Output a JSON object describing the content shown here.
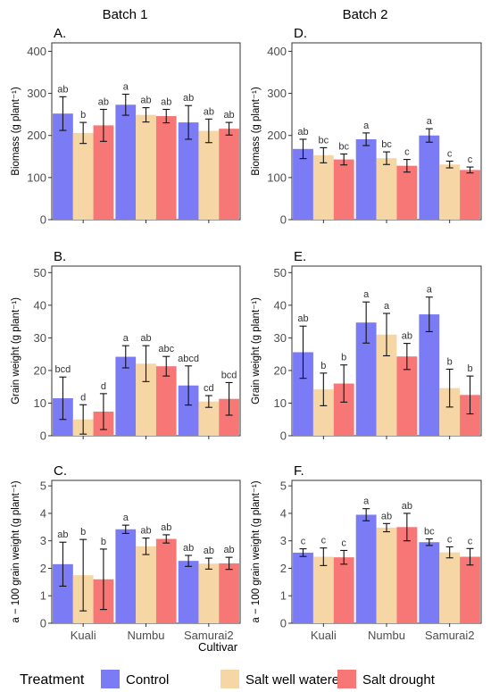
{
  "figure": {
    "col_titles": [
      "Batch 1",
      "Batch 2"
    ],
    "x_title": "Cultivar",
    "legend_title": "Treatment"
  },
  "colors": [
    "#7b7bf5",
    "#f6d6a4",
    "#f77777"
  ],
  "chart_data": [
    {
      "type": "bar",
      "panel": "A.",
      "column": "Batch 1",
      "ylabel": "Biomass (g plant⁻¹)",
      "ylim": [
        0,
        420
      ],
      "yticks": [
        "0",
        "100",
        "200",
        "300",
        "400"
      ],
      "ytick_values": [
        0,
        100,
        200,
        300,
        400
      ],
      "categories": [
        "Kuali",
        "Numbu",
        "Samurai2"
      ],
      "show_xticks": false,
      "grid": false,
      "series": [
        {
          "name": "Control",
          "values": [
            252,
            273,
            231
          ],
          "errors": [
            40,
            25,
            40
          ],
          "letters": [
            "ab",
            "a",
            "ab"
          ]
        },
        {
          "name": "Salt well watered",
          "values": [
            206,
            249,
            211
          ],
          "errors": [
            25,
            17,
            28
          ],
          "letters": [
            "b",
            "ab",
            "ab"
          ]
        },
        {
          "name": "Salt drought",
          "values": [
            224,
            246,
            216
          ],
          "errors": [
            38,
            16,
            15
          ],
          "letters": [
            "ab",
            "ab",
            "ab"
          ]
        }
      ]
    },
    {
      "type": "bar",
      "panel": "D.",
      "column": "Batch 2",
      "ylabel": "Biomass (g plant⁻¹)",
      "ylim": [
        0,
        420
      ],
      "yticks": [
        "0",
        "100",
        "200",
        "300",
        "400"
      ],
      "ytick_values": [
        0,
        100,
        200,
        300,
        400
      ],
      "categories": [
        "Kuali",
        "Numbu",
        "Samurai2"
      ],
      "show_xticks": false,
      "grid": false,
      "series": [
        {
          "name": "Control",
          "values": [
            168,
            191,
            200
          ],
          "errors": [
            23,
            15,
            16
          ],
          "letters": [
            "ab",
            "a",
            "a"
          ]
        },
        {
          "name": "Salt well watered",
          "values": [
            153,
            146,
            131
          ],
          "errors": [
            18,
            15,
            8
          ],
          "letters": [
            "bc",
            "bc",
            "c"
          ]
        },
        {
          "name": "Salt drought",
          "values": [
            143,
            128,
            118
          ],
          "errors": [
            13,
            15,
            7
          ],
          "letters": [
            "bc",
            "c",
            "c"
          ]
        }
      ]
    },
    {
      "type": "bar",
      "panel": "B.",
      "column": "Batch 1",
      "ylabel": "Grain weight (g plant⁻¹)",
      "ylim": [
        0,
        52
      ],
      "yticks": [
        "0",
        "10",
        "20",
        "30",
        "40",
        "50"
      ],
      "ytick_values": [
        0,
        10,
        20,
        30,
        40,
        50
      ],
      "categories": [
        "Kuali",
        "Numbu",
        "Samurai2"
      ],
      "show_xticks": false,
      "grid": false,
      "series": [
        {
          "name": "Control",
          "values": [
            11.5,
            24.2,
            15.4
          ],
          "errors": [
            6.5,
            3.4,
            6
          ],
          "letters": [
            "bcd",
            "a",
            "abcd"
          ]
        },
        {
          "name": "Salt well watered",
          "values": [
            5.0,
            22.1,
            10.5
          ],
          "errors": [
            4.5,
            5.5,
            1.8
          ],
          "letters": [
            "d",
            "ab",
            "cd"
          ]
        },
        {
          "name": "Salt drought",
          "values": [
            7.4,
            21.3,
            11.3
          ],
          "errors": [
            5.5,
            3,
            5
          ],
          "letters": [
            "d",
            "abc",
            "bcd"
          ]
        }
      ]
    },
    {
      "type": "bar",
      "panel": "E.",
      "column": "Batch 2",
      "ylabel": "Grain weight (g plant⁻¹)",
      "ylim": [
        0,
        52
      ],
      "yticks": [
        "0",
        "10",
        "20",
        "30",
        "40",
        "50"
      ],
      "ytick_values": [
        0,
        10,
        20,
        30,
        40,
        50
      ],
      "categories": [
        "Kuali",
        "Numbu",
        "Samurai2"
      ],
      "show_xticks": false,
      "grid": false,
      "series": [
        {
          "name": "Control",
          "values": [
            25.6,
            34.7,
            37.2
          ],
          "errors": [
            8,
            6.3,
            5.3
          ],
          "letters": [
            "ab",
            "a",
            "a"
          ]
        },
        {
          "name": "Salt well watered",
          "values": [
            14.2,
            31.0,
            14.6
          ],
          "errors": [
            5,
            6.5,
            5.8
          ],
          "letters": [
            "b",
            "a",
            "b"
          ]
        },
        {
          "name": "Salt drought",
          "values": [
            16.0,
            24.3,
            12.5
          ],
          "errors": [
            5.7,
            4,
            5.8
          ],
          "letters": [
            "b",
            "ab",
            "b"
          ]
        }
      ]
    },
    {
      "type": "bar",
      "panel": "C.",
      "column": "Batch 1",
      "ylabel": "a − 100 grain weight (g plant⁻¹)",
      "ylim": [
        0,
        5.2
      ],
      "yticks": [
        "0",
        "1",
        "2",
        "3",
        "4",
        "5"
      ],
      "ytick_values": [
        0,
        1,
        2,
        3,
        4,
        5
      ],
      "categories": [
        "Kuali",
        "Numbu",
        "Samurai2"
      ],
      "show_xticks": true,
      "grid": false,
      "series": [
        {
          "name": "Control",
          "values": [
            2.15,
            3.42,
            2.27
          ],
          "errors": [
            0.8,
            0.15,
            0.2
          ],
          "letters": [
            "ab",
            "a",
            "ab"
          ]
        },
        {
          "name": "Salt well watered",
          "values": [
            1.75,
            2.8,
            2.17
          ],
          "errors": [
            1.3,
            0.3,
            0.2
          ],
          "letters": [
            "b",
            "ab",
            "ab"
          ]
        },
        {
          "name": "Salt drought",
          "values": [
            1.6,
            3.07,
            2.18
          ],
          "errors": [
            1.1,
            0.15,
            0.22
          ],
          "letters": [
            "b",
            "ab",
            "ab"
          ]
        }
      ]
    },
    {
      "type": "bar",
      "panel": "F.",
      "column": "Batch 2",
      "ylabel": "a − 100 grain weight (g plant⁻¹)",
      "ylim": [
        0,
        5.2
      ],
      "yticks": [
        "0",
        "1",
        "2",
        "3",
        "4",
        "5"
      ],
      "ytick_values": [
        0,
        1,
        2,
        3,
        4,
        5
      ],
      "categories": [
        "Kuali",
        "Numbu",
        "Samurai2"
      ],
      "show_xticks": true,
      "grid": false,
      "series": [
        {
          "name": "Control",
          "values": [
            2.57,
            3.95,
            2.95
          ],
          "errors": [
            0.14,
            0.22,
            0.12
          ],
          "letters": [
            "c",
            "a",
            "bc"
          ]
        },
        {
          "name": "Salt well watered",
          "values": [
            2.42,
            3.48,
            2.58
          ],
          "errors": [
            0.32,
            0.15,
            0.2
          ],
          "letters": [
            "c",
            "ab",
            "c"
          ]
        },
        {
          "name": "Salt drought",
          "values": [
            2.4,
            3.5,
            2.42
          ],
          "errors": [
            0.25,
            0.5,
            0.3
          ],
          "letters": [
            "c",
            "ab",
            "c"
          ]
        }
      ]
    }
  ]
}
